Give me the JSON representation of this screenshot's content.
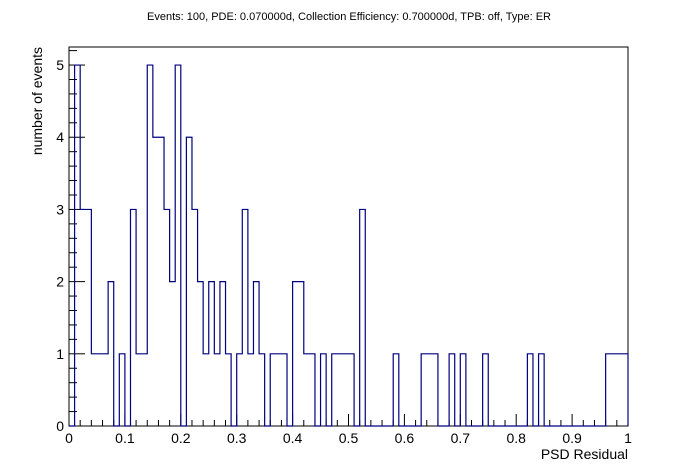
{
  "chart_data": {
    "type": "histogram",
    "title": "Events: 100, PDE: 0.070000d, Collection Efficiency: 0.700000d, TPB: off, Type: ER",
    "xlabel": "PSD Residual",
    "ylabel": "number of events",
    "xlim": [
      0,
      1
    ],
    "ylim": [
      0,
      5.25
    ],
    "bin_width": 0.01,
    "x_ticks": [
      0,
      0.1,
      0.2,
      0.3,
      0.4,
      0.5,
      0.6,
      0.7,
      0.8,
      0.9,
      1
    ],
    "x_tick_labels": [
      "0",
      "0.1",
      "0.2",
      "0.3",
      "0.4",
      "0.5",
      "0.6",
      "0.7",
      "0.8",
      "0.9",
      "1"
    ],
    "y_ticks": [
      0,
      1,
      2,
      3,
      4,
      5
    ],
    "y_tick_labels": [
      "0",
      "1",
      "2",
      "3",
      "4",
      "5"
    ],
    "line_color": "#000080",
    "values": [
      0,
      5,
      3,
      3,
      1,
      1,
      1,
      2,
      0,
      1,
      0,
      3,
      1,
      1,
      5,
      4,
      4,
      3,
      2,
      5,
      0,
      4,
      3,
      2,
      1,
      2,
      1,
      2,
      1,
      0,
      1,
      3,
      1,
      2,
      1,
      0,
      1,
      1,
      1,
      0,
      2,
      2,
      1,
      1,
      0,
      1,
      0,
      1,
      1,
      1,
      1,
      0,
      3,
      0,
      0,
      0,
      0,
      0,
      1,
      0,
      0,
      0,
      0,
      1,
      1,
      1,
      0,
      0,
      1,
      0,
      1,
      0,
      0,
      0,
      1,
      0,
      0,
      0,
      0,
      0,
      0,
      0,
      1,
      0,
      1,
      0,
      0,
      0,
      0,
      0,
      0,
      0,
      0,
      0,
      0,
      0,
      1,
      1,
      1,
      1
    ]
  }
}
